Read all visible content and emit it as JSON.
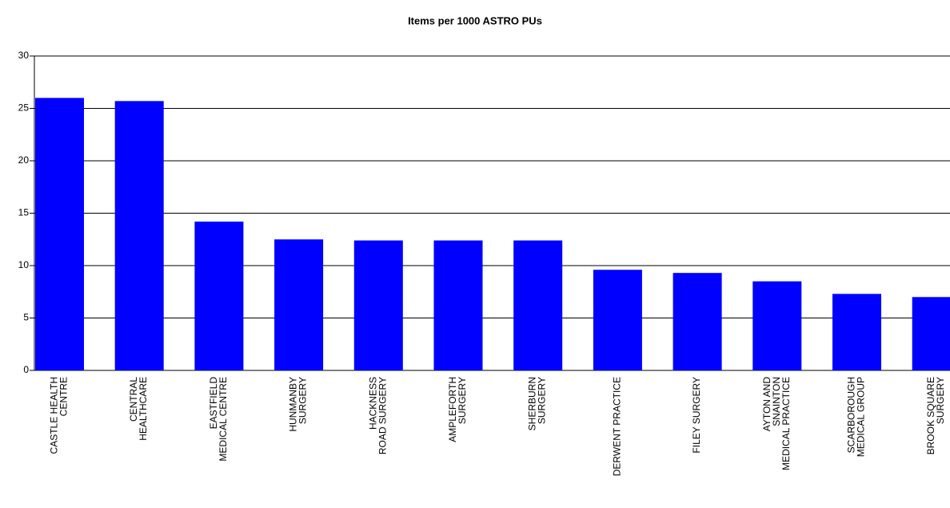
{
  "chart_data": {
    "type": "bar",
    "title": "Items per 1000 ASTRO PUs",
    "categories": [
      "CASTLE HEALTH\nCENTRE",
      "CENTRAL\nHEALTHCARE",
      "EASTFIELD\nMEDICAL CENTRE",
      "HUNMANBY\nSURGERY",
      "HACKNESS\nROAD SURGERY",
      "AMPLEFORTH\nSURGERY",
      "SHERBURN\nSURGERY",
      "DERWENT PRACTICE",
      "FILEY SURGERY",
      "AYTON AND\nSNAINTON\nMEDICAL PRACTICE",
      "SCARBOROUGH\nMEDICAL GROUP",
      "BROOK SQUARE\nSURGERY"
    ],
    "values": [
      26.0,
      25.7,
      14.2,
      12.5,
      12.4,
      12.4,
      12.4,
      9.6,
      9.3,
      8.5,
      7.3,
      7.0
    ],
    "color": "#0000ff",
    "ylim": [
      0,
      30
    ],
    "yticks": [
      0,
      5,
      10,
      15,
      20,
      25,
      30
    ],
    "grid": true
  }
}
